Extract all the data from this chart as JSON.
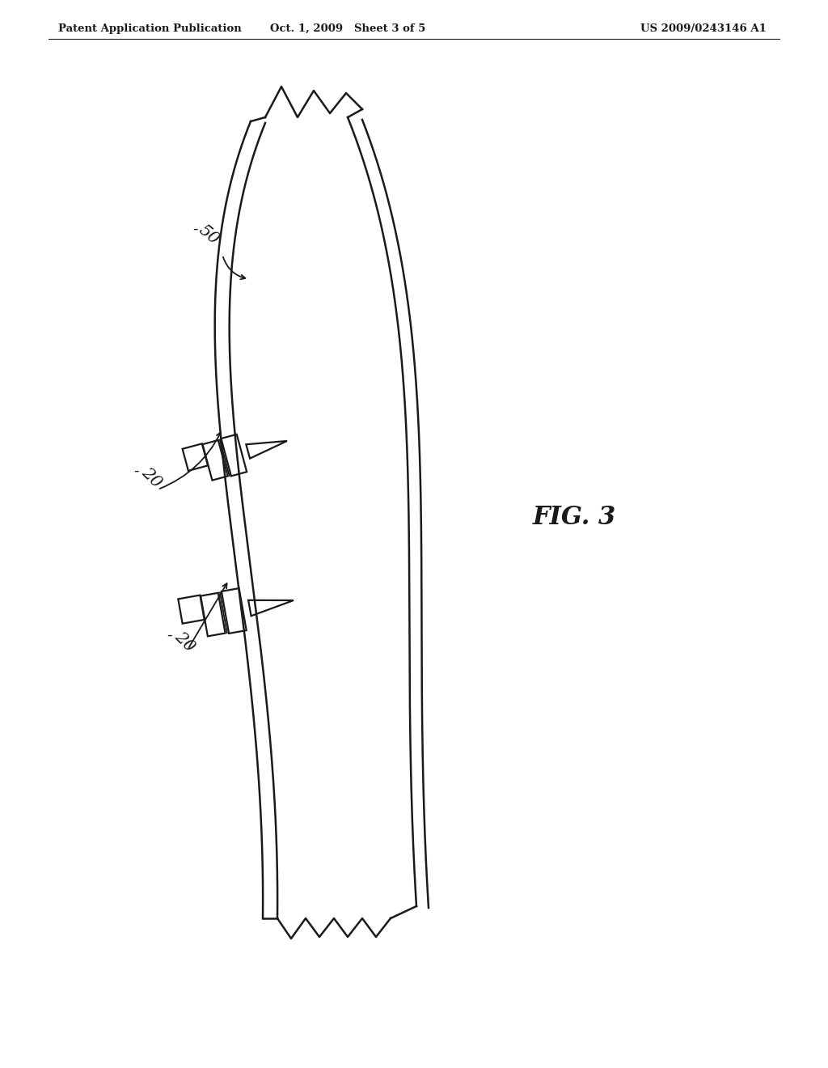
{
  "bg_color": "#ffffff",
  "line_color": "#1a1a1a",
  "header_left": "Patent Application Publication",
  "header_mid": "Oct. 1, 2009   Sheet 3 of 5",
  "header_right": "US 2009/0243146 A1",
  "fig_label": "FIG. 3",
  "label_50": "50",
  "label_20a": "20",
  "label_20b": "20",
  "pipe_lw": 1.8,
  "dripper_lw": 1.6
}
